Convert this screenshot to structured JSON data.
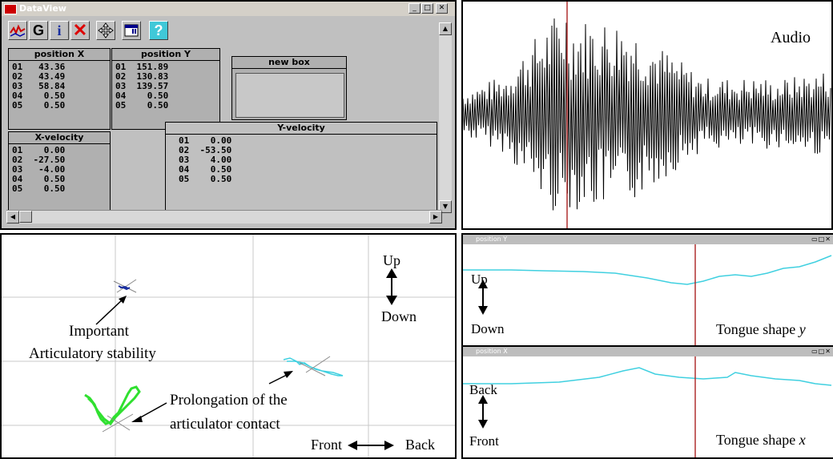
{
  "dataview": {
    "title": "DataView",
    "controls": {
      "minimize": "_",
      "maximize": "□",
      "close": "✕"
    },
    "toolbar": [
      {
        "icon": "graph-icon"
      },
      {
        "label": "G"
      },
      {
        "label": "i"
      },
      {
        "label": "✕"
      },
      {
        "icon": "move-icon"
      },
      {
        "icon": "window-icon"
      },
      {
        "label": "?"
      }
    ],
    "boxes": {
      "position_x": {
        "title": "position X",
        "rows": [
          "01   43.36",
          "02   43.49",
          "03   58.84",
          "04    0.50",
          "05    0.50"
        ]
      },
      "position_y": {
        "title": "position Y",
        "rows": [
          "01  151.89",
          "02  130.83",
          "03  139.57",
          "04    0.50",
          "05    0.50"
        ]
      },
      "new_box": {
        "title": "new box"
      },
      "x_velocity": {
        "title": "X-velocity",
        "rows": [
          "01    0.00",
          "02  -27.50",
          "03   -4.00",
          "04    0.50",
          "05    0.50"
        ]
      },
      "y_velocity": {
        "title": "Y-velocity",
        "rows": [
          "01    0.00",
          "02  -53.50",
          "03    4.00",
          "04    0.50",
          "05    0.50"
        ]
      }
    }
  },
  "audio": {
    "label": "Audio",
    "colors": {
      "wave": "#000000",
      "cursor": "#b03030"
    }
  },
  "trajectory": {
    "up": "Up",
    "down": "Down",
    "front": "Front",
    "back": "Back",
    "annotation1_line1": "Important",
    "annotation1_line2": "Articulatory stability",
    "annotation2_line1": "Prolongation of the",
    "annotation2_line2": "articulator contact",
    "colors": {
      "blue": "#1a2fa0",
      "cyan": "#40d0e0",
      "green": "#30e030"
    }
  },
  "tongue_y": {
    "window_title": "position Y",
    "up": "Up",
    "down": "Down",
    "label_main": "Tongue shape ",
    "label_var": "y"
  },
  "tongue_x": {
    "window_title": "position X",
    "up": "Back",
    "down": "Front",
    "label_main": "Tongue shape ",
    "label_var": "x"
  }
}
